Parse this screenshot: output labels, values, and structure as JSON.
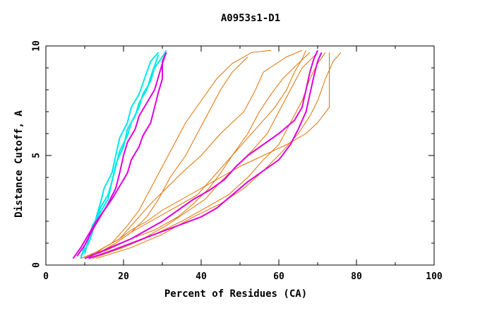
{
  "chart_data": {
    "type": "line",
    "title": "A0953s1-D1",
    "xlabel": "Percent of Residues (CA)",
    "ylabel": "Distance Cutoff, A",
    "xlim": [
      0,
      100
    ],
    "ylim": [
      0,
      10
    ],
    "x_ticks": [
      0,
      20,
      40,
      60,
      80,
      100
    ],
    "y_ticks": [
      0,
      5,
      10
    ],
    "colors": {
      "orange": "#e07000",
      "cyan": "#00e8e8",
      "magenta": "#e000e0",
      "axis": "#000000"
    },
    "series": [
      {
        "name": "orange-1",
        "color": "orange",
        "points": [
          [
            10,
            0.3
          ],
          [
            14,
            0.6
          ],
          [
            18,
            1.0
          ],
          [
            22,
            1.5
          ],
          [
            26,
            2.2
          ],
          [
            29,
            3.0
          ],
          [
            32,
            4.0
          ],
          [
            36,
            5.0
          ],
          [
            39,
            6.0
          ],
          [
            42,
            7.0
          ],
          [
            45,
            8.0
          ],
          [
            48,
            8.8
          ],
          [
            52,
            9.5
          ]
        ]
      },
      {
        "name": "orange-2",
        "color": "orange",
        "points": [
          [
            9,
            0.3
          ],
          [
            13,
            0.6
          ],
          [
            17,
            1.0
          ],
          [
            21,
            1.8
          ],
          [
            24,
            2.5
          ],
          [
            27,
            3.5
          ],
          [
            30,
            4.5
          ],
          [
            33,
            5.5
          ],
          [
            36,
            6.5
          ],
          [
            40,
            7.5
          ],
          [
            44,
            8.5
          ],
          [
            48,
            9.2
          ],
          [
            53,
            9.7
          ],
          [
            58,
            9.8
          ]
        ]
      },
      {
        "name": "orange-3",
        "color": "orange",
        "points": [
          [
            11,
            0.3
          ],
          [
            15,
            0.8
          ],
          [
            19,
            1.2
          ],
          [
            23,
            2.0
          ],
          [
            27,
            2.8
          ],
          [
            31,
            3.5
          ],
          [
            35,
            4.2
          ],
          [
            40,
            5.0
          ],
          [
            45,
            6.0
          ],
          [
            51,
            7.0
          ],
          [
            54,
            8.0
          ],
          [
            56,
            8.8
          ],
          [
            62,
            9.5
          ],
          [
            66,
            9.8
          ]
        ]
      },
      {
        "name": "orange-4",
        "color": "orange",
        "points": [
          [
            10,
            0.3
          ],
          [
            16,
            0.7
          ],
          [
            22,
            1.2
          ],
          [
            28,
            1.6
          ],
          [
            34,
            2.2
          ],
          [
            38,
            2.8
          ],
          [
            42,
            3.5
          ],
          [
            45,
            4.2
          ],
          [
            48,
            5.0
          ],
          [
            52,
            6.0
          ],
          [
            55,
            7.0
          ],
          [
            58,
            7.8
          ],
          [
            61,
            8.5
          ],
          [
            65,
            9.2
          ],
          [
            68,
            9.7
          ]
        ]
      },
      {
        "name": "orange-5",
        "color": "orange",
        "points": [
          [
            11,
            0.3
          ],
          [
            18,
            0.7
          ],
          [
            25,
            1.2
          ],
          [
            31,
            1.8
          ],
          [
            36,
            2.4
          ],
          [
            41,
            3.0
          ],
          [
            45,
            3.8
          ],
          [
            49,
            4.5
          ],
          [
            53,
            5.2
          ],
          [
            57,
            6.0
          ],
          [
            60,
            7.0
          ],
          [
            63,
            8.0
          ],
          [
            66,
            9.0
          ],
          [
            70,
            9.7
          ]
        ]
      },
      {
        "name": "orange-6",
        "color": "orange",
        "points": [
          [
            12,
            0.3
          ],
          [
            20,
            0.8
          ],
          [
            28,
            1.4
          ],
          [
            35,
            2.0
          ],
          [
            41,
            2.6
          ],
          [
            47,
            3.2
          ],
          [
            52,
            4.0
          ],
          [
            56,
            4.8
          ],
          [
            60,
            5.5
          ],
          [
            63,
            6.5
          ],
          [
            66,
            7.5
          ],
          [
            68,
            8.5
          ],
          [
            70,
            9.2
          ],
          [
            72,
            9.7
          ]
        ]
      },
      {
        "name": "orange-7",
        "color": "orange",
        "points": [
          [
            13,
            0.3
          ],
          [
            22,
            0.8
          ],
          [
            30,
            1.4
          ],
          [
            38,
            2.2
          ],
          [
            45,
            2.8
          ],
          [
            51,
            3.5
          ],
          [
            56,
            4.3
          ],
          [
            61,
            5.2
          ],
          [
            65,
            6.0
          ],
          [
            68,
            6.8
          ],
          [
            70,
            7.5
          ],
          [
            72,
            8.5
          ],
          [
            74,
            9.3
          ],
          [
            76,
            9.7
          ]
        ]
      },
      {
        "name": "orange-8",
        "color": "orange",
        "points": [
          [
            9,
            0.3
          ],
          [
            12,
            0.5
          ],
          [
            15,
            0.8
          ],
          [
            19,
            1.2
          ],
          [
            22,
            1.6
          ],
          [
            26,
            2.0
          ],
          [
            30,
            2.5
          ],
          [
            35,
            3.0
          ],
          [
            40,
            3.5
          ],
          [
            45,
            4.0
          ],
          [
            50,
            4.5
          ],
          [
            56,
            5.0
          ],
          [
            62,
            5.5
          ],
          [
            67,
            6.0
          ],
          [
            70,
            6.5
          ],
          [
            73,
            7.2
          ],
          [
            73,
            8.5
          ],
          [
            73,
            9.7
          ]
        ]
      },
      {
        "name": "orange-9",
        "color": "orange",
        "points": [
          [
            10,
            0.3
          ],
          [
            14,
            0.6
          ],
          [
            18,
            1.0
          ],
          [
            22,
            1.5
          ],
          [
            27,
            2.0
          ],
          [
            33,
            2.6
          ],
          [
            39,
            3.2
          ],
          [
            43,
            4.0
          ],
          [
            47,
            4.8
          ],
          [
            51,
            5.6
          ],
          [
            55,
            6.4
          ],
          [
            59,
            7.2
          ],
          [
            62,
            8.0
          ],
          [
            64,
            8.8
          ],
          [
            66,
            9.4
          ],
          [
            67,
            9.8
          ]
        ]
      },
      {
        "name": "cyan-1",
        "color": "cyan",
        "points": [
          [
            9,
            0.4
          ],
          [
            11,
            1.0
          ],
          [
            12,
            1.5
          ],
          [
            13,
            2.2
          ],
          [
            14,
            2.8
          ],
          [
            15,
            3.5
          ],
          [
            17,
            4.2
          ],
          [
            18,
            5.0
          ],
          [
            19,
            5.8
          ],
          [
            21,
            6.5
          ],
          [
            22,
            7.2
          ],
          [
            24,
            7.8
          ],
          [
            25,
            8.3
          ],
          [
            26,
            8.8
          ],
          [
            27,
            9.3
          ],
          [
            29,
            9.7
          ]
        ]
      },
      {
        "name": "cyan-2",
        "color": "cyan",
        "points": [
          [
            10,
            0.5
          ],
          [
            11,
            1.2
          ],
          [
            12,
            1.8
          ],
          [
            14,
            2.4
          ],
          [
            16,
            3.0
          ],
          [
            17,
            3.8
          ],
          [
            18,
            4.5
          ],
          [
            19,
            5.2
          ],
          [
            21,
            5.9
          ],
          [
            22,
            6.5
          ],
          [
            24,
            7.2
          ],
          [
            25,
            7.8
          ],
          [
            27,
            8.4
          ],
          [
            28,
            9.0
          ],
          [
            30,
            9.5
          ],
          [
            31,
            9.8
          ]
        ]
      },
      {
        "name": "cyan-3",
        "color": "cyan",
        "points": [
          [
            9,
            0.3
          ],
          [
            10,
            0.9
          ],
          [
            12,
            1.6
          ],
          [
            13,
            2.0
          ],
          [
            14,
            2.6
          ],
          [
            16,
            3.2
          ],
          [
            17,
            3.8
          ],
          [
            18,
            4.6
          ],
          [
            20,
            5.4
          ],
          [
            21,
            6.2
          ],
          [
            23,
            6.8
          ],
          [
            24,
            7.4
          ],
          [
            26,
            8.0
          ],
          [
            27,
            8.6
          ],
          [
            28,
            9.1
          ],
          [
            29,
            9.6
          ]
        ]
      },
      {
        "name": "magenta-1",
        "color": "magenta",
        "points": [
          [
            8,
            0.4
          ],
          [
            10,
            0.9
          ],
          [
            12,
            1.6
          ],
          [
            14,
            2.2
          ],
          [
            16,
            2.8
          ],
          [
            18,
            3.5
          ],
          [
            19,
            4.2
          ],
          [
            20,
            5.0
          ],
          [
            21,
            5.6
          ],
          [
            23,
            6.2
          ],
          [
            24,
            6.8
          ],
          [
            26,
            7.4
          ],
          [
            28,
            8.0
          ],
          [
            29,
            8.6
          ],
          [
            30,
            9.2
          ],
          [
            31,
            9.7
          ]
        ]
      },
      {
        "name": "magenta-2",
        "color": "magenta",
        "points": [
          [
            7,
            0.3
          ],
          [
            9,
            0.8
          ],
          [
            11,
            1.4
          ],
          [
            13,
            2.0
          ],
          [
            15,
            2.5
          ],
          [
            17,
            3.0
          ],
          [
            19,
            3.6
          ],
          [
            21,
            4.2
          ],
          [
            22,
            4.8
          ],
          [
            24,
            5.4
          ],
          [
            25,
            5.9
          ],
          [
            27,
            6.5
          ],
          [
            28,
            7.2
          ],
          [
            29,
            7.9
          ],
          [
            30,
            8.5
          ],
          [
            30,
            9.3
          ],
          [
            31,
            9.7
          ]
        ]
      },
      {
        "name": "magenta-3",
        "color": "magenta",
        "points": [
          [
            10,
            0.3
          ],
          [
            14,
            0.6
          ],
          [
            18,
            0.9
          ],
          [
            22,
            1.2
          ],
          [
            26,
            1.6
          ],
          [
            30,
            2.0
          ],
          [
            34,
            2.5
          ],
          [
            38,
            3.0
          ],
          [
            42,
            3.4
          ],
          [
            46,
            3.9
          ],
          [
            49,
            4.5
          ],
          [
            52,
            5.0
          ],
          [
            56,
            5.5
          ],
          [
            60,
            6.0
          ],
          [
            64,
            6.6
          ],
          [
            66,
            7.2
          ],
          [
            67,
            8.0
          ],
          [
            68,
            8.8
          ],
          [
            69,
            9.4
          ],
          [
            70,
            9.8
          ]
        ]
      },
      {
        "name": "magenta-4",
        "color": "magenta",
        "points": [
          [
            11,
            0.3
          ],
          [
            16,
            0.6
          ],
          [
            22,
            1.0
          ],
          [
            28,
            1.4
          ],
          [
            34,
            1.8
          ],
          [
            40,
            2.2
          ],
          [
            44,
            2.6
          ],
          [
            48,
            3.2
          ],
          [
            52,
            3.8
          ],
          [
            56,
            4.3
          ],
          [
            60,
            4.8
          ],
          [
            63,
            5.5
          ],
          [
            65,
            6.2
          ],
          [
            67,
            7.0
          ],
          [
            68,
            7.8
          ],
          [
            69,
            8.6
          ],
          [
            70,
            9.3
          ],
          [
            71,
            9.7
          ]
        ]
      }
    ]
  }
}
